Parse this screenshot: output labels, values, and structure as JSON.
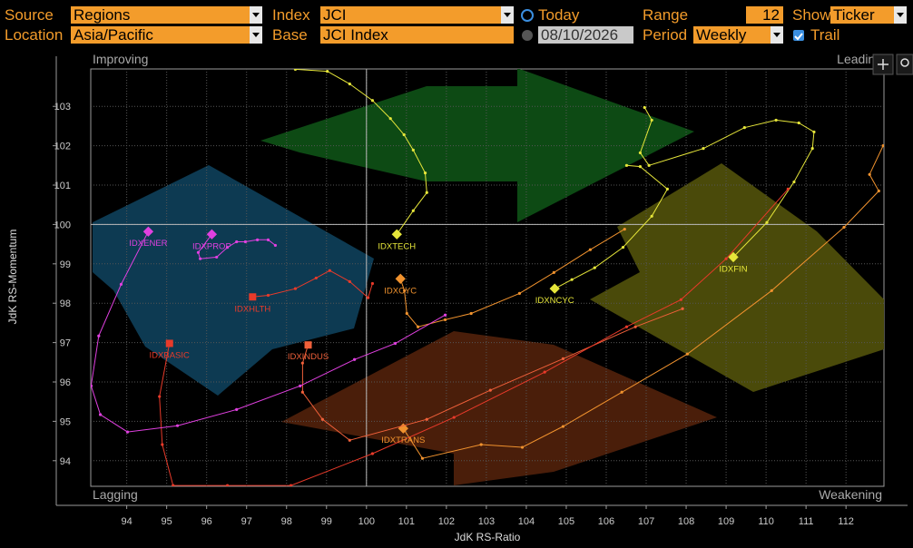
{
  "controls": {
    "source_label": "Source",
    "source": "Regions",
    "index_label": "Index",
    "index": "JCI",
    "today": "Today",
    "range_label": "Range",
    "range": "12",
    "show_label": "Show",
    "show": "Ticker",
    "location_label": "Location",
    "location": "Asia/Pacific",
    "base_label": "Base",
    "base": "JCI Index",
    "date": "08/10/2026",
    "period_label": "Period",
    "period": "Weekly",
    "trail": "Trail"
  },
  "chart_data": {
    "type": "rrg",
    "x_label": "JdK RS-Ratio",
    "y_label": "JdK RS-Momentum",
    "quadrants": {
      "top_left": "Improving",
      "top_right": "Leading",
      "bottom_left": "Lagging",
      "bottom_right": "Weakening"
    },
    "xlim": [
      93.1,
      112.95
    ],
    "ylim": [
      93.35,
      103.95
    ],
    "xticks": [
      94,
      95,
      96,
      97,
      98,
      99,
      100,
      101,
      102,
      103,
      104,
      105,
      106,
      107,
      108,
      109,
      110,
      111,
      112
    ],
    "yticks": [
      94,
      95,
      96,
      97,
      98,
      99,
      100,
      101,
      102,
      103
    ],
    "center": [
      100,
      100
    ],
    "grid": true,
    "series": [
      {
        "name": "IDXTECH",
        "color": "#e6e63a",
        "marker": "diamond",
        "x": [
          98.22,
          99.02,
          99.58,
          100.15,
          100.6,
          100.94,
          101.17,
          101.47,
          101.51,
          101.17,
          100.76
        ],
        "y": [
          103.94,
          103.89,
          103.57,
          103.15,
          102.69,
          102.28,
          101.89,
          101.31,
          100.81,
          100.35,
          99.75
        ]
      },
      {
        "name": "IDXNCYC",
        "color": "#e6e63a",
        "marker": "diamond",
        "x": [
          106.51,
          106.85,
          107.53,
          107.14,
          106.42,
          105.71,
          105.14,
          104.71
        ],
        "y": [
          101.5,
          101.47,
          100.9,
          100.21,
          99.42,
          98.9,
          98.6,
          98.37
        ]
      },
      {
        "name": "IDXFIN",
        "color": "#e6e63a",
        "marker": "diamond",
        "x": [
          106.96,
          107.14,
          106.85,
          107.07,
          108.43,
          109.46,
          110.25,
          110.82,
          111.2,
          111.16,
          110.7,
          110.02,
          109.18
        ],
        "y": [
          102.97,
          102.65,
          101.82,
          101.5,
          101.93,
          102.46,
          102.65,
          102.58,
          102.35,
          101.93,
          101.08,
          100.05,
          99.17
        ]
      },
      {
        "name": "IDXCYC",
        "color": "#f0922e",
        "marker": "diamond",
        "x": [
          106.46,
          105.6,
          104.69,
          103.83,
          102.62,
          101.97,
          101.29,
          101.01,
          100.95,
          100.85
        ],
        "y": [
          99.88,
          99.36,
          98.78,
          98.25,
          97.74,
          97.58,
          97.4,
          97.74,
          98.32,
          98.62
        ]
      },
      {
        "name": "IDXTRANS",
        "color": "#f0922e",
        "marker": "diamond",
        "x": [
          112.93,
          112.59,
          112.82,
          111.95,
          110.14,
          108.03,
          106.39,
          104.92,
          103.9,
          102.87,
          101.4,
          100.92
        ],
        "y": [
          102.0,
          101.27,
          100.85,
          99.93,
          98.32,
          96.71,
          95.74,
          94.87,
          94.34,
          94.41,
          94.06,
          94.82
        ]
      },
      {
        "name": "IDXHLTH",
        "color": "#e83a2a",
        "marker": "square",
        "x": [
          100.15,
          100.04,
          99.58,
          99.08,
          98.74,
          98.22,
          97.54,
          97.15
        ],
        "y": [
          98.5,
          98.14,
          98.55,
          98.83,
          98.64,
          98.37,
          98.2,
          98.16
        ]
      },
      {
        "name": "IDXINDUS",
        "color": "#f0603a",
        "marker": "square",
        "x": [
          107.91,
          106.73,
          104.92,
          103.1,
          101.51,
          99.58,
          98.9,
          98.4,
          98.4,
          98.54
        ],
        "y": [
          97.86,
          97.4,
          96.59,
          95.79,
          95.05,
          94.52,
          95.05,
          95.74,
          96.48,
          96.94
        ]
      },
      {
        "name": "IDXBASIC",
        "color": "#e83a2a",
        "marker": "square",
        "x": [
          110.55,
          109.0,
          107.87,
          106.51,
          104.46,
          102.19,
          100.15,
          98.11,
          96.52,
          95.16,
          94.89,
          94.82,
          95.07
        ],
        "y": [
          100.9,
          99.13,
          98.09,
          97.4,
          96.25,
          95.1,
          94.18,
          93.37,
          93.37,
          93.37,
          94.41,
          95.63,
          96.98
        ]
      },
      {
        "name": "IDXENER",
        "color": "#e040e0",
        "marker": "diamond",
        "x": [
          101.97,
          100.72,
          99.7,
          98.34,
          96.75,
          95.27,
          94.02,
          93.34,
          93.11,
          93.3,
          93.86,
          94.54
        ],
        "y": [
          97.7,
          96.98,
          96.57,
          95.9,
          95.3,
          94.89,
          94.73,
          95.17,
          95.9,
          97.17,
          98.48,
          99.82
        ]
      },
      {
        "name": "IDXPROP",
        "color": "#e040e0",
        "marker": "diamond",
        "x": [
          97.72,
          97.54,
          97.27,
          96.97,
          96.75,
          96.52,
          96.25,
          95.84,
          95.79,
          96.13
        ],
        "y": [
          99.47,
          99.61,
          99.61,
          99.56,
          99.56,
          99.42,
          99.17,
          99.13,
          99.29,
          99.75
        ]
      }
    ]
  }
}
